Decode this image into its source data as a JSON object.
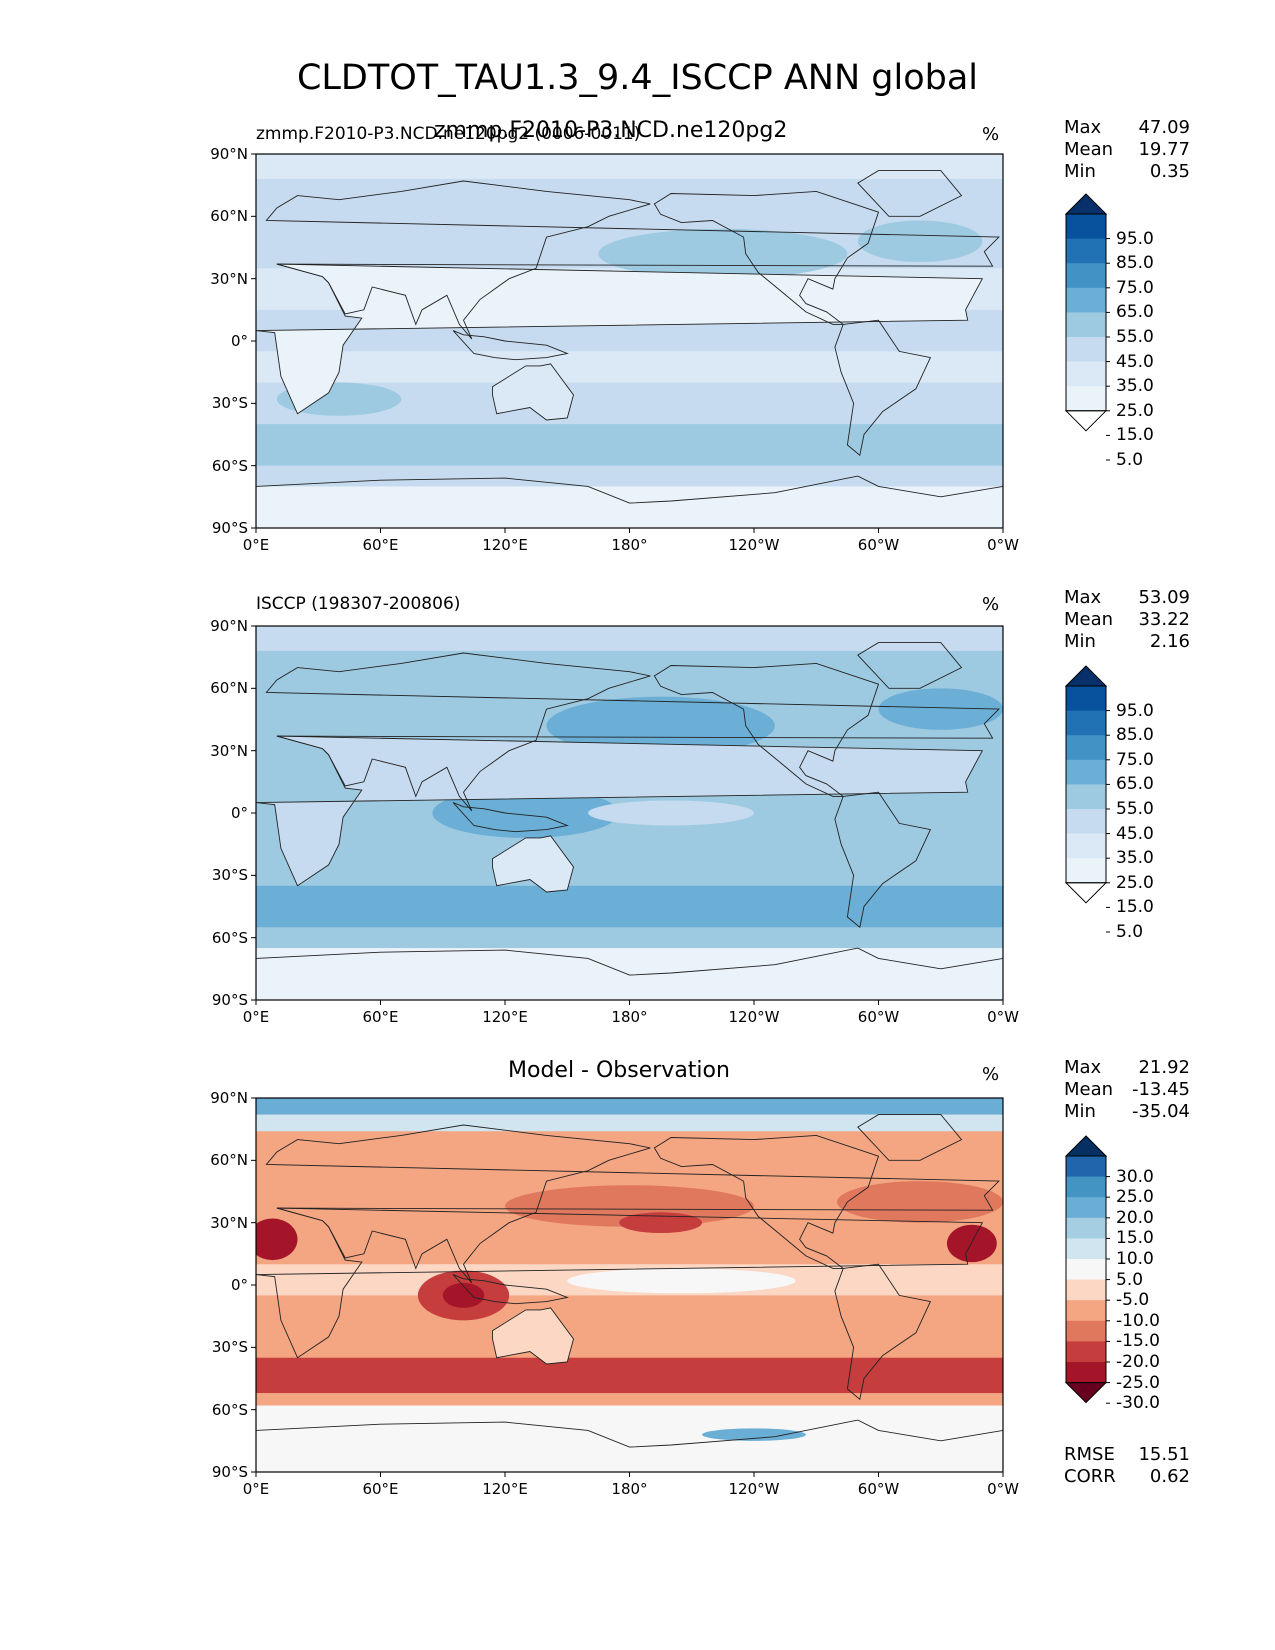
{
  "figure": {
    "title": "CLDTOT_TAU1.3_9.4_ISCCP ANN global",
    "unit": "%"
  },
  "panels": [
    {
      "id": "model",
      "title_left": "zmmp.F2010-P3.NCD.ne120pg2 (0006-0011)",
      "title_center": "zmmp.F2010-P3.NCD.ne120pg2",
      "unit": "%",
      "stats": [
        {
          "label": "Max",
          "value": "47.09"
        },
        {
          "label": "Mean",
          "value": "19.77"
        },
        {
          "label": "Min",
          "value": "0.35"
        }
      ],
      "colorbar": {
        "levels": [
          "95.0",
          "85.0",
          "75.0",
          "65.0",
          "55.0",
          "45.0",
          "35.0",
          "25.0",
          "15.0",
          "5.0"
        ],
        "colors": [
          "#08306b",
          "#08519c",
          "#2171b5",
          "#4292c6",
          "#6baed6",
          "#9ecae1",
          "#c6dbef",
          "#dbe9f6",
          "#eaf2fa",
          "#ffffff"
        ]
      }
    },
    {
      "id": "obs",
      "title_left": "ISCCP (198307-200806)",
      "title_center": "",
      "unit": "%",
      "stats": [
        {
          "label": "Max",
          "value": "53.09"
        },
        {
          "label": "Mean",
          "value": "33.22"
        },
        {
          "label": "Min",
          "value": "2.16"
        }
      ],
      "colorbar": {
        "levels": [
          "95.0",
          "85.0",
          "75.0",
          "65.0",
          "55.0",
          "45.0",
          "35.0",
          "25.0",
          "15.0",
          "5.0"
        ],
        "colors": [
          "#08306b",
          "#08519c",
          "#2171b5",
          "#4292c6",
          "#6baed6",
          "#9ecae1",
          "#c6dbef",
          "#dbe9f6",
          "#eaf2fa",
          "#ffffff"
        ]
      }
    },
    {
      "id": "diff",
      "title_left": "",
      "title_center": "Model - Observation",
      "unit": "%",
      "stats": [
        {
          "label": "Max",
          "value": "21.92"
        },
        {
          "label": "Mean",
          "value": "-13.45"
        },
        {
          "label": "Min",
          "value": "-35.04"
        }
      ],
      "extra_stats": [
        {
          "label": "RMSE",
          "value": "15.51"
        },
        {
          "label": "CORR",
          "value": "0.62"
        }
      ],
      "colorbar": {
        "levels": [
          "30.0",
          "25.0",
          "20.0",
          "15.0",
          "10.0",
          "5.0",
          "-5.0",
          "-10.0",
          "-15.0",
          "-20.0",
          "-25.0",
          "-30.0"
        ],
        "colors": [
          "#053061",
          "#2166ac",
          "#4393c3",
          "#6aaed6",
          "#a6cee3",
          "#d1e5f0",
          "#f7f7f7",
          "#fbd7c4",
          "#f4a582",
          "#e0785e",
          "#c63d3d",
          "#a5152a",
          "#67001f"
        ]
      }
    }
  ],
  "axes": {
    "lat_labels": [
      "90°N",
      "60°N",
      "30°N",
      "0°",
      "30°S",
      "60°S",
      "90°S"
    ],
    "lon_labels": [
      "0°E",
      "60°E",
      "120°E",
      "180°",
      "120°W",
      "60°W",
      "0°W"
    ]
  },
  "map_colors": {
    "model_base": "#c6dbef",
    "model_light": "#dbe9f6",
    "model_lighter": "#eaf2fa",
    "model_mid": "#9ecae1",
    "obs_base": "#9ecae1",
    "obs_mid": "#6baed6",
    "obs_light": "#c6dbef",
    "diff_base": "#fbd7c4",
    "diff_mid": "#f4a582",
    "diff_strong": "#e0785e",
    "diff_deep": "#c63d3d",
    "diff_blue": "#6aaed6",
    "coast": "#222222"
  }
}
